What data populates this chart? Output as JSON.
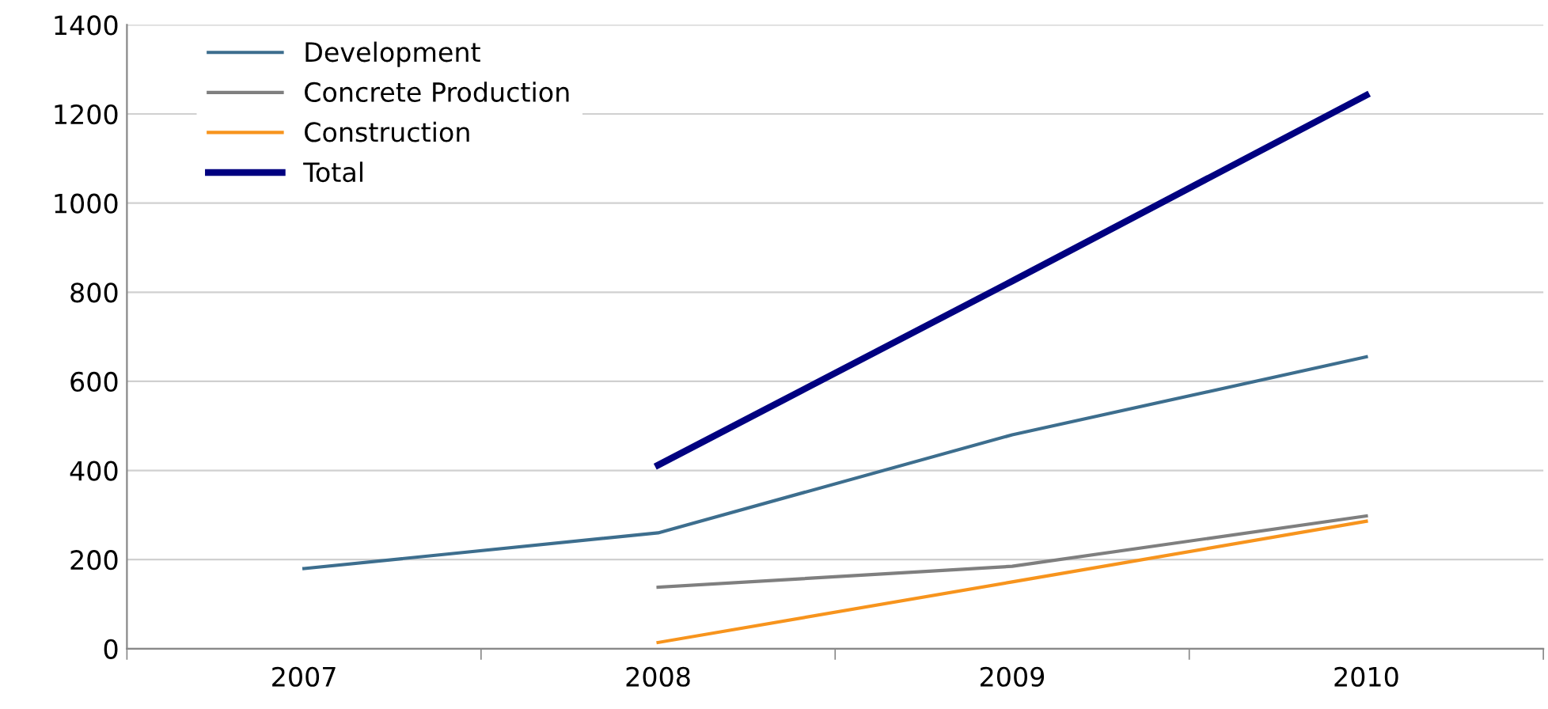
{
  "chart_data": {
    "type": "line",
    "categories": [
      "2007",
      "2008",
      "2009",
      "2010"
    ],
    "series": [
      {
        "name": "Development",
        "color": "#3d6e8e",
        "values": [
          180,
          260,
          480,
          655
        ]
      },
      {
        "name": "Concrete Production",
        "color": "#7f7f7f",
        "values": [
          null,
          138,
          185,
          298
        ]
      },
      {
        "name": "Construction",
        "color": "#f7941d",
        "values": [
          null,
          14,
          150,
          286
        ]
      },
      {
        "name": "Total",
        "color": "#000080",
        "values": [
          null,
          412,
          825,
          1242
        ]
      }
    ],
    "ylim": [
      0,
      1400
    ],
    "yticks": [
      0,
      200,
      400,
      600,
      800,
      1000,
      1200,
      1400
    ],
    "grid": "y",
    "legend": "top left",
    "marker": "none",
    "line_style": "solid"
  }
}
